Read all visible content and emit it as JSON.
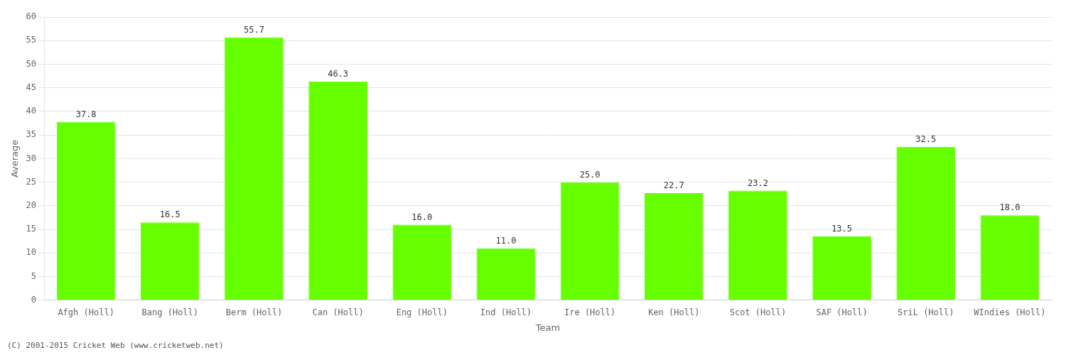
{
  "chart_data": {
    "type": "bar",
    "categories": [
      "Afgh (Holl)",
      "Bang (Holl)",
      "Berm (Holl)",
      "Can (Holl)",
      "Eng (Holl)",
      "Ind (Holl)",
      "Ire (Holl)",
      "Ken (Holl)",
      "Scot (Holl)",
      "SAF (Holl)",
      "SriL (Holl)",
      "WIndies (Holl)"
    ],
    "values": [
      37.8,
      16.5,
      55.7,
      46.3,
      16.0,
      11.0,
      25.0,
      22.7,
      23.2,
      13.5,
      32.5,
      18.0
    ],
    "value_labels": [
      "37.8",
      "16.5",
      "55.7",
      "46.3",
      "16.0",
      "11.0",
      "25.0",
      "22.7",
      "23.2",
      "13.5",
      "32.5",
      "18.0"
    ],
    "color": "#66ff00",
    "xlabel": "Team",
    "ylabel": "Average",
    "ylim": [
      0,
      60
    ],
    "yticks": [
      0,
      5,
      10,
      15,
      20,
      25,
      30,
      35,
      40,
      45,
      50,
      55,
      60
    ],
    "grid": true,
    "data_labels": true,
    "footnote": "(C) 2001-2015 Cricket Web (www.cricketweb.net)"
  }
}
